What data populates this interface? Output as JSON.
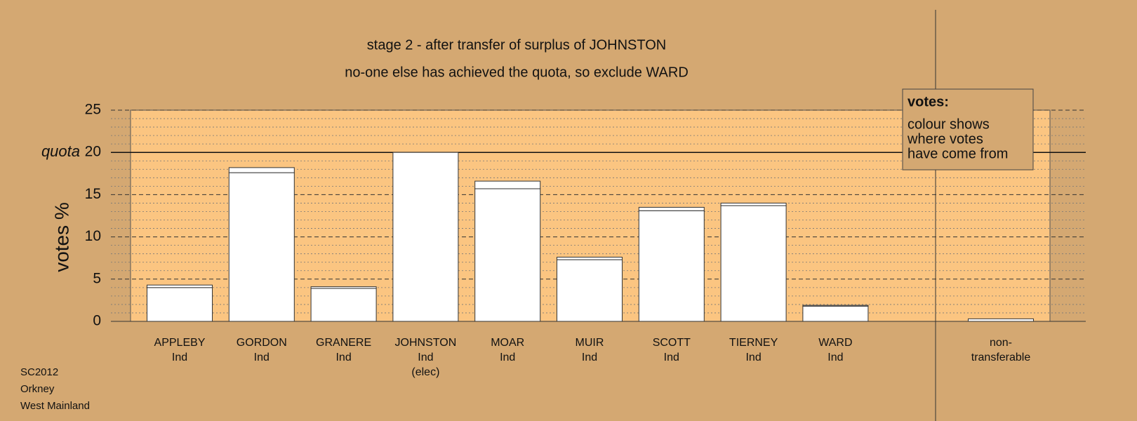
{
  "chart_data": {
    "type": "stacked_bar",
    "title": "stage 2 - after transfer of surplus of JOHNSTON",
    "subtitle": "no-one else has achieved the quota, so exclude WARD",
    "y_label": "votes %",
    "quota": 20,
    "quota_label": "quota",
    "categories": [
      [
        "APPLEBY",
        "Ind"
      ],
      [
        "GORDON",
        "Ind"
      ],
      [
        "GRANERE",
        "Ind"
      ],
      [
        "JOHNSTON",
        "Ind",
        "(elec)"
      ],
      [
        "MOAR",
        "Ind"
      ],
      [
        "MUIR",
        "Ind"
      ],
      [
        "SCOTT",
        "Ind"
      ],
      [
        "TIERNEY",
        "Ind"
      ],
      [
        "WARD",
        "Ind"
      ],
      [
        "non-",
        "transferable"
      ]
    ],
    "series": [
      {
        "color": "#ffffff",
        "values": [
          4.0,
          17.6,
          3.9,
          20,
          15.7,
          7.3,
          13.1,
          13.7,
          1.8,
          0
        ]
      },
      {
        "color": "#ffffff",
        "values": [
          0.3,
          0.6,
          0.2,
          0,
          0.9,
          0.3,
          0.4,
          0.3,
          0.1,
          0.3
        ]
      }
    ],
    "ylim": [
      0,
      25
    ],
    "yticks": [
      0,
      5,
      10,
      15,
      20,
      25
    ],
    "yticks_minor": [
      1,
      2,
      3,
      4,
      6,
      7,
      8,
      9,
      11,
      12,
      13,
      14,
      16,
      17,
      18,
      19,
      21,
      22,
      23,
      24
    ],
    "grid": true,
    "legend": {
      "title": "votes:",
      "lines": [
        "colour shows",
        "where votes",
        "have come from"
      ]
    },
    "footer": [
      "SC2012",
      "Orkney",
      "West Mainland"
    ]
  }
}
